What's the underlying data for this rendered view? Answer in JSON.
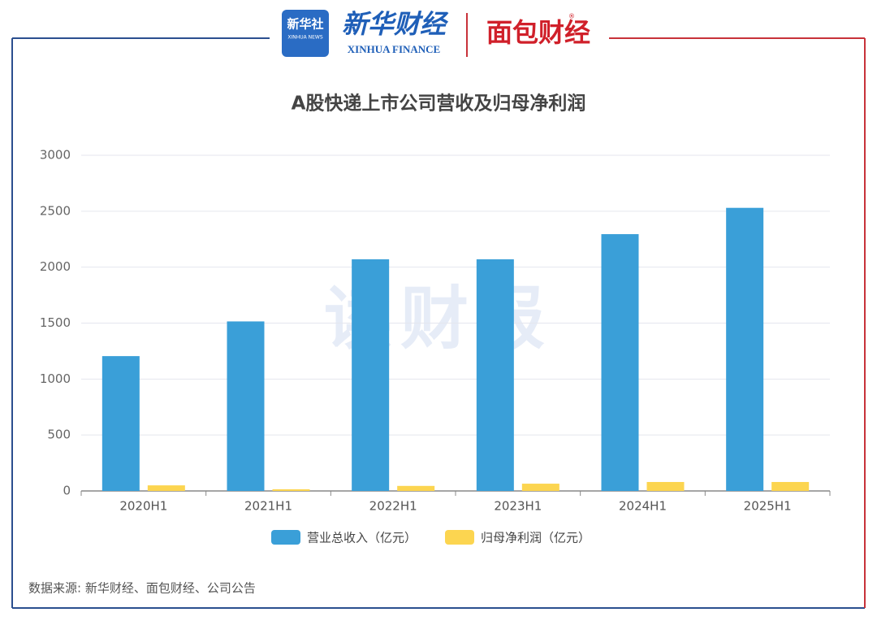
{
  "header": {
    "xinhua_logo": "新华社",
    "xinhua_logo_sub": "XINHUA NEWS",
    "xinhua_finance": "新华财经",
    "xinhua_finance_en": "XINHUA FINANCE",
    "mianbao": "面包财经",
    "mianbao_mark": "®"
  },
  "watermark": "读财报",
  "source": "数据来源: 新华财经、面包财经、公司公告",
  "chart_data": {
    "type": "bar",
    "title": "A股快递上市公司营收及归母净利润",
    "categories": [
      "2020H1",
      "2021H1",
      "2022H1",
      "2023H1",
      "2024H1",
      "2025H1"
    ],
    "series": [
      {
        "name": "营业总收入（亿元）",
        "color": "#3a9fd8",
        "values": [
          1205,
          1515,
          2070,
          2070,
          2295,
          2530
        ]
      },
      {
        "name": "归母净利润（亿元）",
        "color": "#fcd550",
        "values": [
          50,
          15,
          45,
          65,
          80,
          80
        ]
      }
    ],
    "ylim": [
      0,
      3000
    ],
    "yticks": [
      0,
      500,
      1000,
      1500,
      2000,
      2500,
      3000
    ],
    "grid": true,
    "legend": "bottom"
  }
}
